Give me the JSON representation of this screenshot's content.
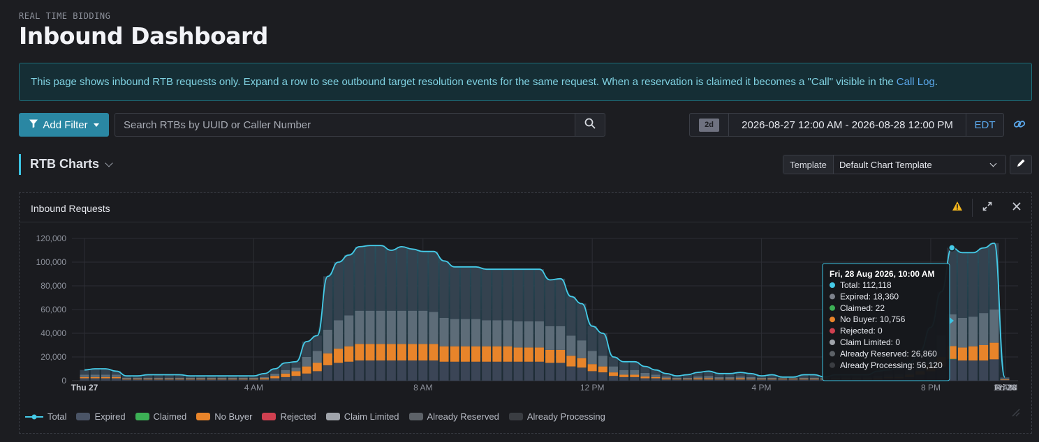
{
  "header": {
    "eyebrow": "REAL TIME BIDDING",
    "title": "Inbound Dashboard"
  },
  "banner": {
    "text": "This page shows inbound RTB requests only. Expand a row to see outbound target resolution events for the same request. When a reservation is claimed it becomes a \"Call\" visible in the",
    "link": "Call Log",
    "suffix": "."
  },
  "toolbar": {
    "add_filter": "Add Filter",
    "search_placeholder": "Search RTBs by UUID or Caller Number",
    "range_badge": "2d",
    "date_range": "2026-08-27 12:00 AM - 2026-08-28 12:00 PM",
    "timezone": "EDT"
  },
  "section": {
    "title": "RTB Charts",
    "template_label": "Template",
    "template_value": "Default Chart Template"
  },
  "panel": {
    "title": "Inbound Requests"
  },
  "chart_data": {
    "type": "bar",
    "title": "Inbound Requests",
    "ylim": [
      0,
      120000
    ],
    "y_ticks": [
      "0",
      "20,000",
      "40,000",
      "60,000",
      "80,000",
      "100,000",
      "120,000"
    ],
    "x_ticks": [
      "Thu 27",
      "4 AM",
      "8 AM",
      "12 PM",
      "4 PM",
      "8 PM",
      "Fri 28",
      "4 AM",
      "8 AM",
      "12 PM"
    ],
    "x_tick_bold": [
      "Thu 27",
      "Fri 28"
    ],
    "interval": "30 min",
    "stacked": true,
    "colors": {
      "Total": "#45cbe8",
      "Expired": "#3b4556",
      "Claimed": "#3cb055",
      "No Buyer": "#e8842a",
      "Rejected": "#d04050",
      "Claim Limited": "#a0a4ab",
      "Already Reserved": "#5d6c78",
      "Already Processing": "#34424f"
    },
    "series_names": [
      "Total",
      "Expired",
      "Claimed",
      "No Buyer",
      "Rejected",
      "Claim Limited",
      "Already Reserved",
      "Already Processing"
    ],
    "total": [
      9000,
      10000,
      10000,
      8000,
      4000,
      4000,
      5000,
      5000,
      5000,
      5000,
      4000,
      4000,
      4000,
      4000,
      4000,
      4000,
      4000,
      6000,
      10000,
      15000,
      16000,
      33000,
      38000,
      88000,
      100000,
      106000,
      113000,
      114000,
      114000,
      110000,
      113000,
      111000,
      109000,
      109000,
      101000,
      96000,
      96000,
      96000,
      94000,
      94000,
      94000,
      94000,
      94000,
      94000,
      85000,
      86000,
      71000,
      65000,
      46000,
      40000,
      20000,
      16000,
      16000,
      12000,
      9000,
      6000,
      4000,
      5000,
      7000,
      8000,
      6000,
      6000,
      7000,
      6000,
      4000,
      5000,
      3000,
      3000,
      5000,
      5000,
      3000,
      5000,
      5000,
      5000,
      5000,
      8000,
      9000,
      10000,
      15000,
      25000,
      45000,
      75000,
      112118,
      108000,
      108000,
      112000,
      116000,
      3000
    ],
    "expired": [
      2000,
      2000,
      2000,
      2000,
      1000,
      1000,
      1000,
      1000,
      1000,
      1000,
      1000,
      1000,
      1000,
      1000,
      1000,
      1000,
      1000,
      1000,
      2000,
      3000,
      4000,
      6000,
      8000,
      13000,
      15000,
      16000,
      17000,
      17000,
      17000,
      17000,
      17000,
      17000,
      17000,
      17000,
      16000,
      16000,
      16000,
      16000,
      16000,
      16000,
      16000,
      16000,
      16000,
      16000,
      15000,
      15000,
      12000,
      11000,
      8000,
      7000,
      4000,
      3000,
      3000,
      2000,
      2000,
      1000,
      1000,
      1000,
      1000,
      1000,
      1000,
      1000,
      1000,
      1000,
      1000,
      1000,
      1000,
      1000,
      1000,
      1000,
      1000,
      1000,
      1000,
      1000,
      1000,
      1000,
      2000,
      2000,
      3000,
      5000,
      8000,
      12000,
      18360,
      17000,
      17000,
      17000,
      18000,
      500
    ],
    "claimed": [
      0,
      0,
      0,
      0,
      0,
      0,
      0,
      0,
      0,
      0,
      0,
      0,
      0,
      0,
      0,
      0,
      0,
      0,
      0,
      0,
      0,
      0,
      0,
      0,
      0,
      0,
      0,
      0,
      0,
      0,
      0,
      0,
      0,
      0,
      0,
      0,
      0,
      0,
      0,
      0,
      0,
      0,
      0,
      0,
      0,
      0,
      0,
      0,
      0,
      0,
      0,
      0,
      0,
      0,
      0,
      0,
      0,
      0,
      0,
      0,
      0,
      0,
      0,
      0,
      0,
      0,
      0,
      0,
      0,
      0,
      0,
      0,
      0,
      0,
      0,
      0,
      0,
      0,
      0,
      0,
      0,
      0,
      22,
      0,
      0,
      0,
      0,
      0
    ],
    "no_buyer": [
      1000,
      1000,
      1000,
      1000,
      500,
      500,
      500,
      500,
      500,
      500,
      500,
      500,
      500,
      500,
      500,
      500,
      500,
      1000,
      2000,
      3000,
      4000,
      6000,
      7000,
      10000,
      12000,
      13000,
      14000,
      14000,
      14000,
      14000,
      14000,
      14000,
      14000,
      14000,
      13000,
      13000,
      13000,
      13000,
      13000,
      13000,
      13000,
      12000,
      12000,
      12000,
      11000,
      11000,
      9000,
      8000,
      6000,
      5000,
      3000,
      2000,
      2000,
      1500,
      1000,
      1000,
      500,
      500,
      1000,
      1000,
      500,
      500,
      1000,
      500,
      500,
      500,
      500,
      500,
      500,
      500,
      500,
      500,
      500,
      500,
      500,
      1000,
      1000,
      1000,
      2000,
      3000,
      5000,
      8000,
      10756,
      11000,
      12000,
      13000,
      14000,
      500
    ],
    "already_reserved": [
      2000,
      2000,
      2000,
      2000,
      1000,
      1000,
      1000,
      1000,
      1000,
      1000,
      1000,
      1000,
      1000,
      1000,
      1000,
      1000,
      1000,
      1000,
      2000,
      3000,
      3000,
      8000,
      10000,
      20000,
      24000,
      26000,
      28000,
      28000,
      28000,
      28000,
      28000,
      28000,
      28000,
      27000,
      24000,
      23000,
      23000,
      23000,
      22000,
      22000,
      22000,
      22000,
      22000,
      22000,
      20000,
      20000,
      17000,
      15000,
      11000,
      9000,
      5000,
      4000,
      4000,
      3000,
      2000,
      1500,
      1000,
      1000,
      1500,
      2000,
      1500,
      1500,
      1500,
      1500,
      1000,
      1000,
      500,
      500,
      1000,
      1000,
      500,
      1000,
      1000,
      1000,
      1000,
      2000,
      2000,
      2500,
      4000,
      6000,
      11000,
      18000,
      26860,
      25000,
      25000,
      27000,
      28000,
      1000
    ]
  }
}
